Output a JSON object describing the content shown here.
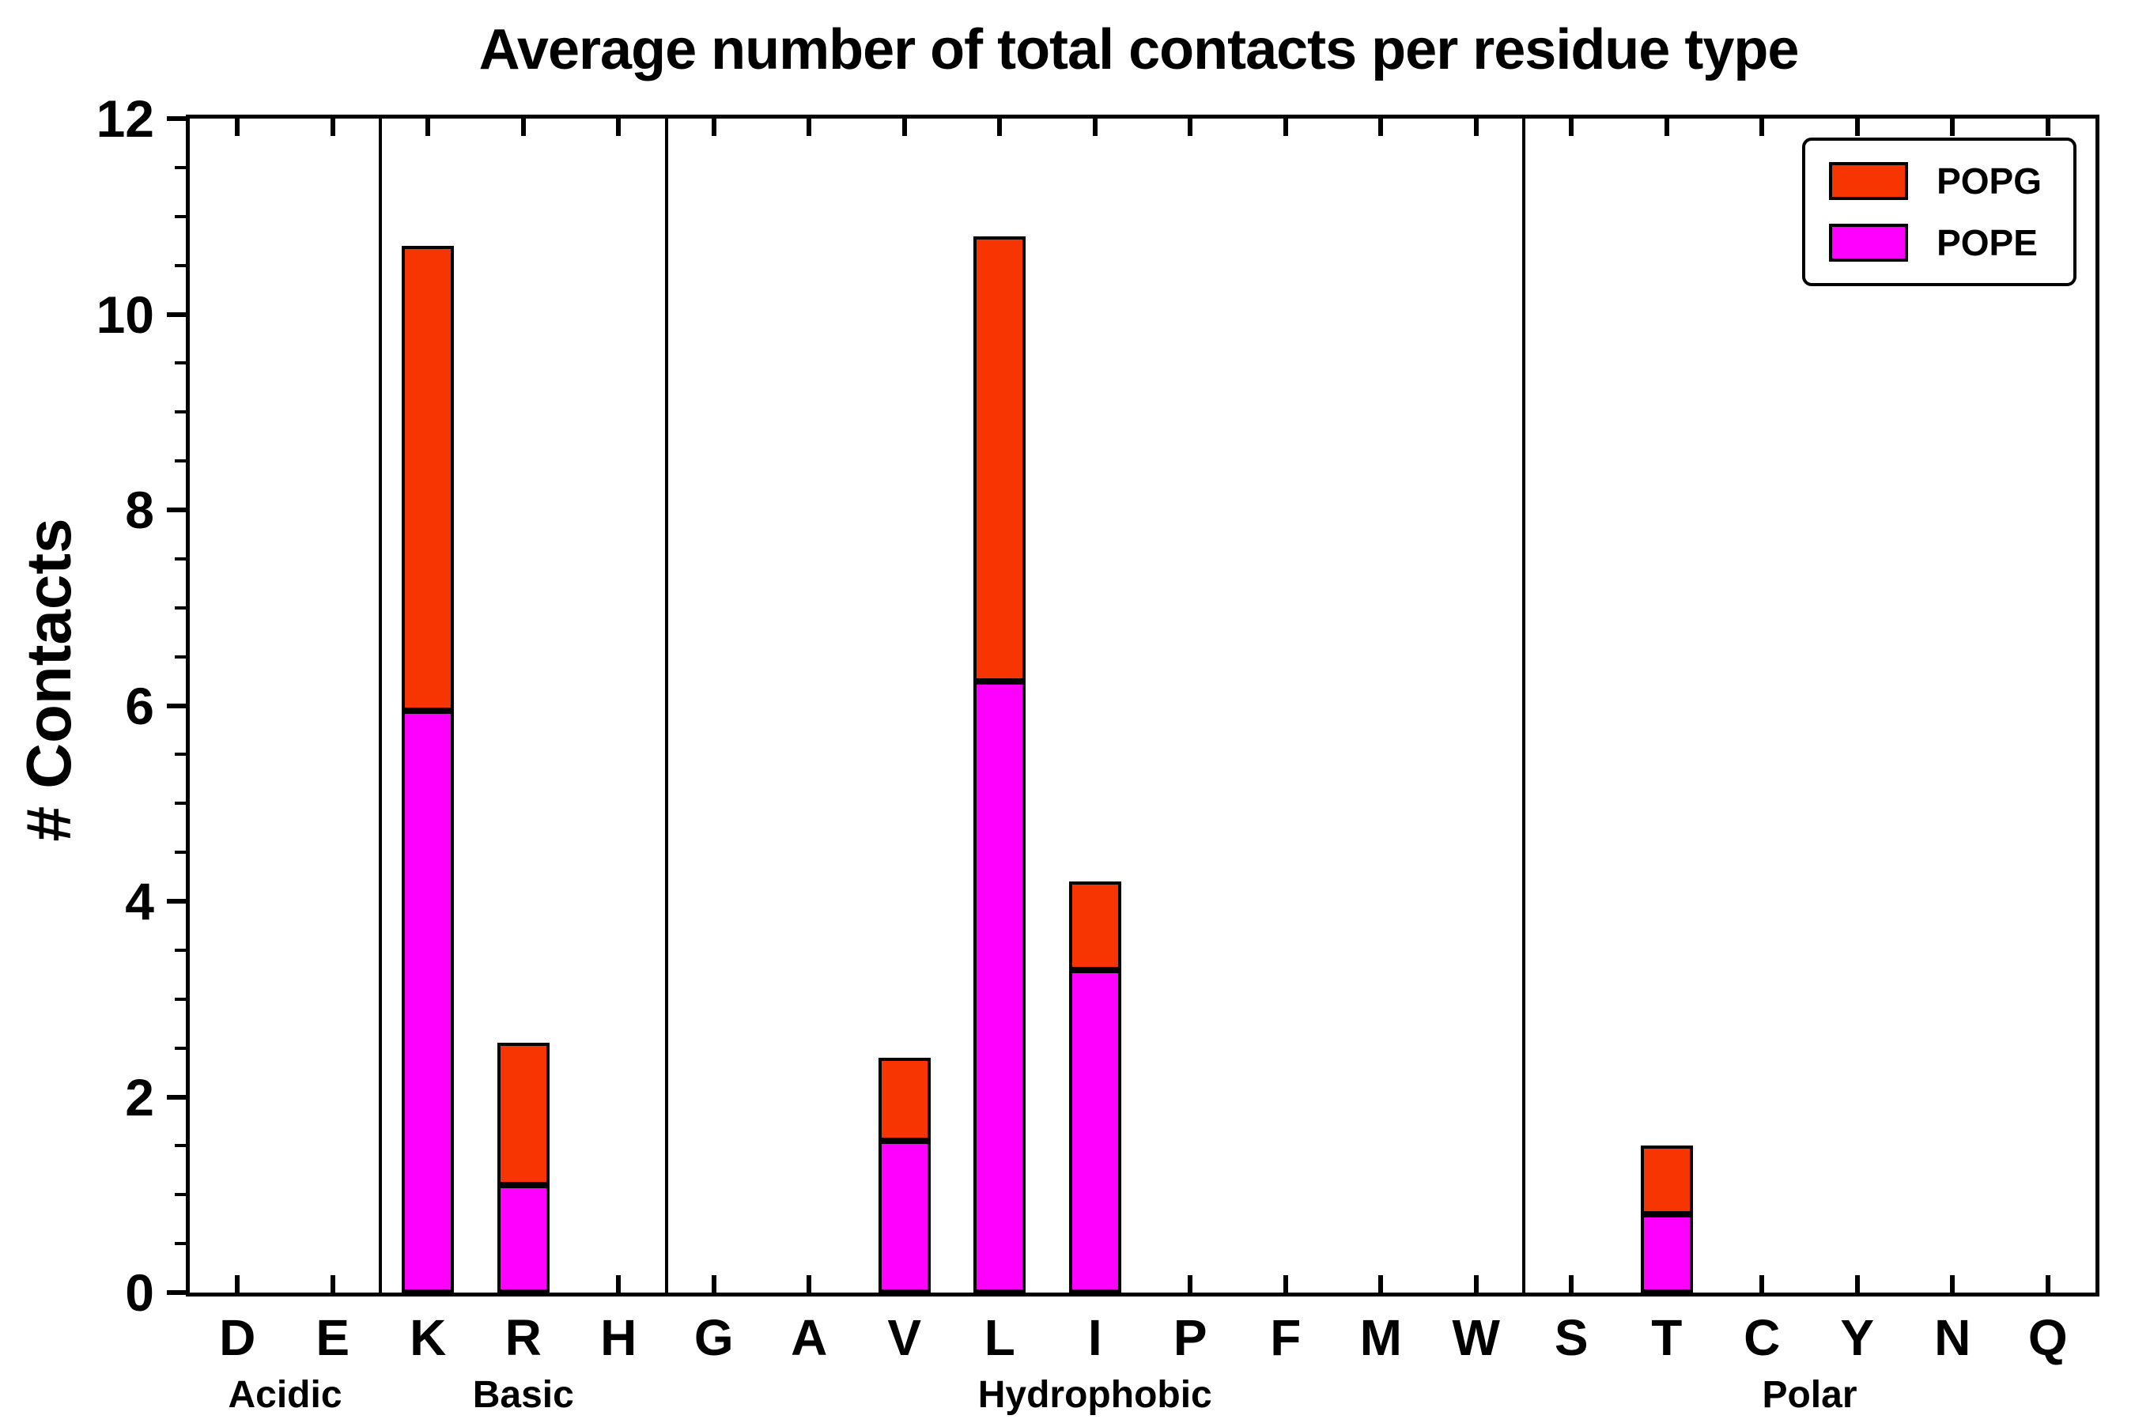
{
  "chart_data": {
    "type": "bar",
    "stacked": true,
    "title": "Average number of total contacts per residue type",
    "ylabel": "# Contacts",
    "xlabel": "",
    "ylim": [
      0,
      12
    ],
    "yticks": [
      0,
      2,
      4,
      6,
      8,
      10,
      12
    ],
    "grid": false,
    "background": "#ffffff",
    "axis_color": "#000000",
    "groups": [
      {
        "label": "Acidic",
        "categories": [
          "D",
          "E"
        ]
      },
      {
        "label": "Basic",
        "categories": [
          "K",
          "R",
          "H"
        ]
      },
      {
        "label": "Hydrophobic",
        "categories": [
          "G",
          "A",
          "V",
          "L",
          "I",
          "P",
          "F",
          "M",
          "W"
        ]
      },
      {
        "label": "Polar",
        "categories": [
          "S",
          "T",
          "C",
          "Y",
          "N",
          "Q"
        ]
      }
    ],
    "categories": [
      "D",
      "E",
      "K",
      "R",
      "H",
      "G",
      "A",
      "V",
      "L",
      "I",
      "P",
      "F",
      "M",
      "W",
      "S",
      "T",
      "C",
      "Y",
      "N",
      "Q"
    ],
    "series": [
      {
        "name": "POPE",
        "color": "#ff00ff",
        "values": [
          0,
          0,
          5.95,
          1.1,
          0,
          0,
          0,
          1.55,
          6.25,
          3.3,
          0,
          0,
          0,
          0,
          0,
          0.8,
          0,
          0,
          0,
          0
        ]
      },
      {
        "name": "POPG",
        "color": "#f63502",
        "values": [
          0,
          0,
          4.75,
          1.45,
          0,
          0,
          0,
          0.85,
          4.55,
          0.9,
          0,
          0,
          0,
          0,
          0,
          0.7,
          0,
          0,
          0,
          0
        ]
      }
    ],
    "legend": {
      "position": "upper right",
      "entries": [
        "POPG",
        "POPE"
      ]
    }
  }
}
